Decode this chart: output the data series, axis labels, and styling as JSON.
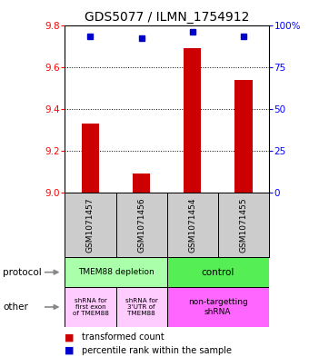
{
  "title": "GDS5077 / ILMN_1754912",
  "samples": [
    "GSM1071457",
    "GSM1071456",
    "GSM1071454",
    "GSM1071455"
  ],
  "bar_values": [
    9.33,
    9.09,
    9.69,
    9.54
  ],
  "dot_values": [
    93,
    92,
    96,
    93
  ],
  "ylim_left": [
    9.0,
    9.8
  ],
  "ylim_right": [
    0,
    100
  ],
  "yticks_left": [
    9.0,
    9.2,
    9.4,
    9.6,
    9.8
  ],
  "yticks_right": [
    0,
    25,
    50,
    75,
    100
  ],
  "ytick_labels_right": [
    "0",
    "25",
    "50",
    "75",
    "100%"
  ],
  "bar_color": "#cc0000",
  "dot_color": "#0000cc",
  "protocol_labels": [
    "TMEM88 depletion",
    "control"
  ],
  "protocol_colors": [
    "#aaffaa",
    "#55ee55"
  ],
  "other_labels_left1": "shRNA for\nfirst exon\nof TMEM88",
  "other_labels_left2": "shRNA for\n3'UTR of\nTMEM88",
  "other_labels_right": "non-targetting\nshRNA",
  "other_color_left": "#ffccff",
  "other_color_right": "#ff66ff",
  "legend_bar_label": "transformed count",
  "legend_dot_label": "percentile rank within the sample",
  "background_color": "#ffffff",
  "sample_box_color": "#cccccc",
  "title_fontsize": 10,
  "tick_fontsize": 7.5,
  "sample_fontsize": 6.5,
  "annot_fontsize": 7,
  "legend_fontsize": 7
}
